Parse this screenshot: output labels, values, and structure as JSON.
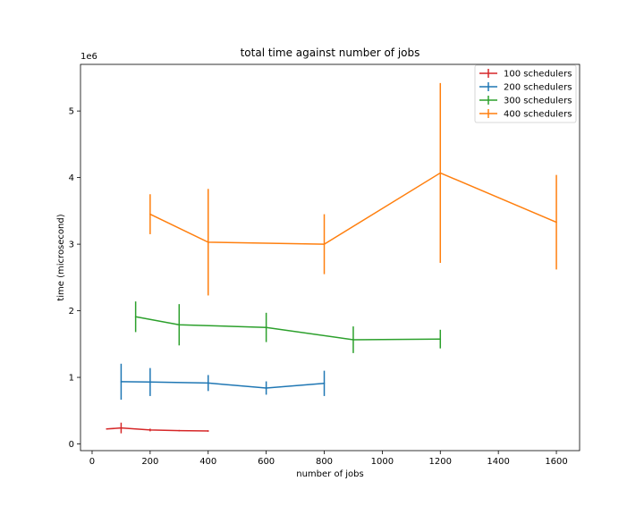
{
  "chart_data": {
    "type": "line",
    "title": "total time against number of jobs",
    "xlabel": "number of jobs",
    "ylabel": "time (microsecond)",
    "y_offset_label": "1e6",
    "xlim": [
      -40,
      1680
    ],
    "ylim": [
      -0.1,
      5.7
    ],
    "x_ticks": [
      0,
      200,
      400,
      600,
      800,
      1000,
      1200,
      1400,
      1600
    ],
    "y_ticks": [
      0,
      1,
      2,
      3,
      4,
      5
    ],
    "grid": false,
    "legend_position": "top-right",
    "error_bars": true,
    "series": [
      {
        "name": "100 schedulers",
        "color": "#d62728",
        "x": [
          50,
          100,
          200,
          300,
          400
        ],
        "y": [
          0.225,
          0.24,
          0.21,
          0.2,
          0.195
        ],
        "yerr": [
          0.0,
          0.08,
          0.02,
          0.01,
          0.01
        ]
      },
      {
        "name": "200 schedulers",
        "color": "#1f77b4",
        "x": [
          100,
          200,
          400,
          600,
          800
        ],
        "y": [
          0.935,
          0.93,
          0.915,
          0.84,
          0.91
        ],
        "yerr": [
          0.27,
          0.21,
          0.12,
          0.1,
          0.19
        ]
      },
      {
        "name": "300 schedulers",
        "color": "#2ca02c",
        "x": [
          150,
          300,
          600,
          900,
          1200
        ],
        "y": [
          1.91,
          1.79,
          1.75,
          1.565,
          1.575
        ],
        "yerr": [
          0.23,
          0.31,
          0.22,
          0.2,
          0.14
        ]
      },
      {
        "name": "400 schedulers",
        "color": "#ff7f0e",
        "x": [
          200,
          400,
          800,
          1200,
          1600
        ],
        "y": [
          3.45,
          3.03,
          3.0,
          4.07,
          3.33
        ],
        "yerr": [
          0.3,
          0.8,
          0.45,
          1.35,
          0.71
        ]
      }
    ]
  }
}
